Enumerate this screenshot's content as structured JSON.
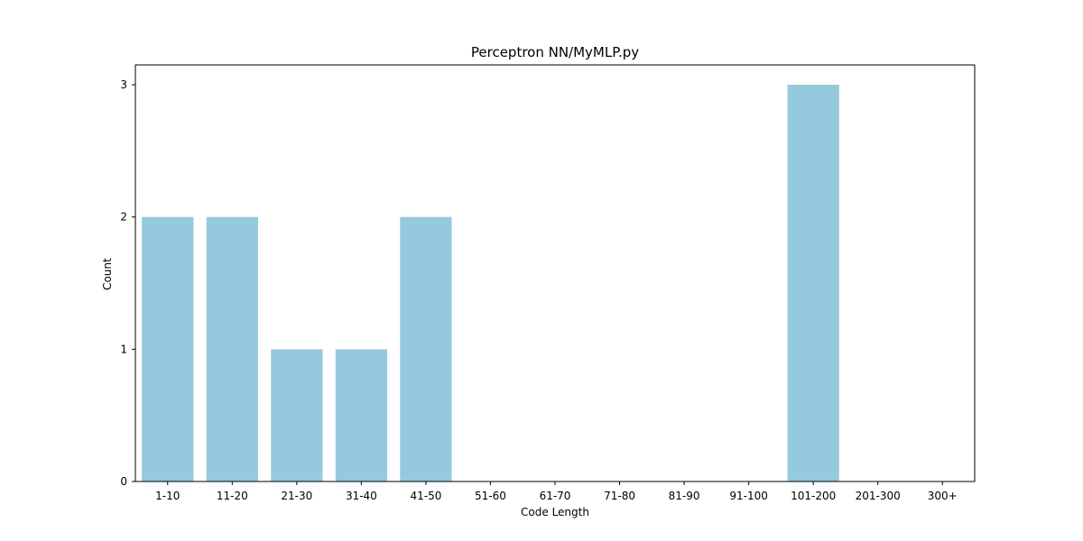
{
  "chart_data": {
    "type": "bar",
    "title": "Perceptron NN/MyMLP.py",
    "xlabel": "Code Length",
    "ylabel": "Count",
    "categories": [
      "1-10",
      "11-20",
      "21-30",
      "31-40",
      "41-50",
      "51-60",
      "61-70",
      "71-80",
      "81-90",
      "91-100",
      "101-200",
      "201-300",
      "300+"
    ],
    "values": [
      2,
      2,
      1,
      1,
      2,
      0,
      0,
      0,
      0,
      0,
      3,
      0,
      0
    ],
    "ylim": [
      0,
      3.15
    ],
    "yticks": [
      0,
      1,
      2,
      3
    ],
    "grid": false,
    "legend": "none",
    "bar_color": "#96c9de"
  }
}
